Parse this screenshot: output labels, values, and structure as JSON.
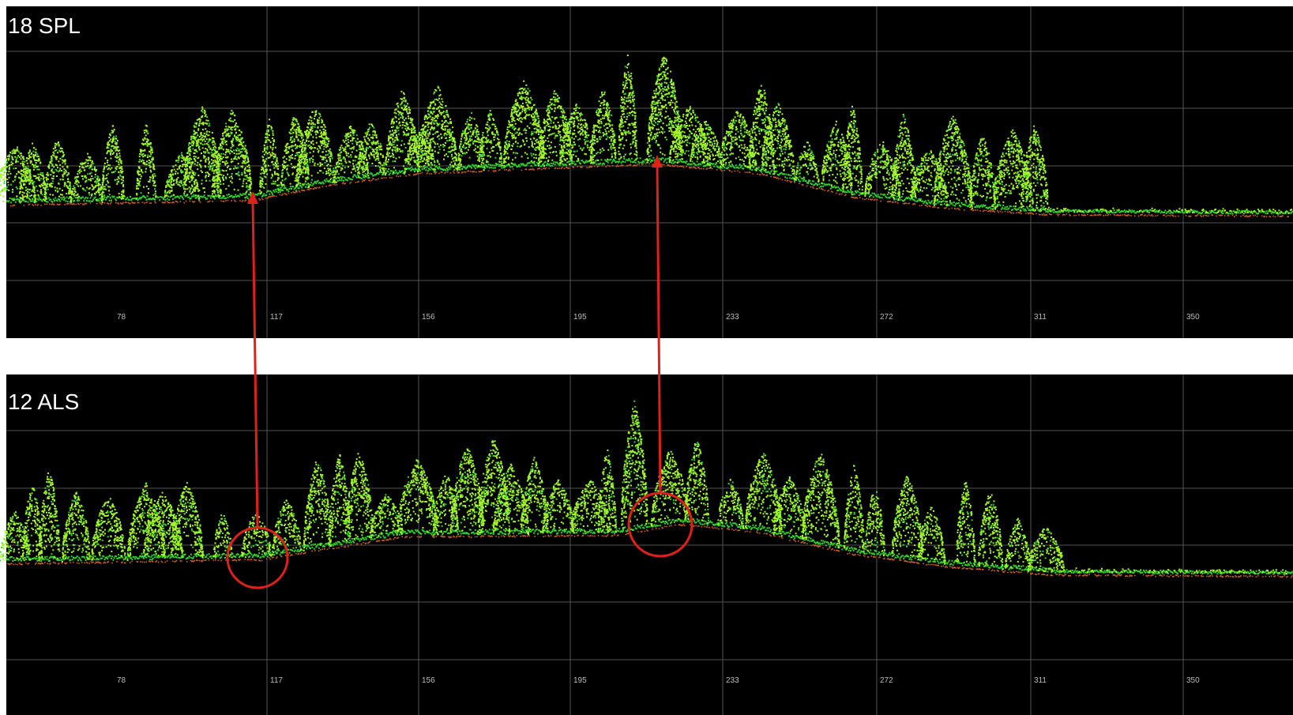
{
  "panels": [
    {
      "title": "18 SPL",
      "ticks": [
        78,
        117,
        156,
        195,
        233,
        272,
        311,
        350
      ]
    },
    {
      "title": "12 ALS",
      "ticks": [
        78,
        117,
        156,
        195,
        233,
        272,
        311,
        350
      ]
    }
  ]
}
